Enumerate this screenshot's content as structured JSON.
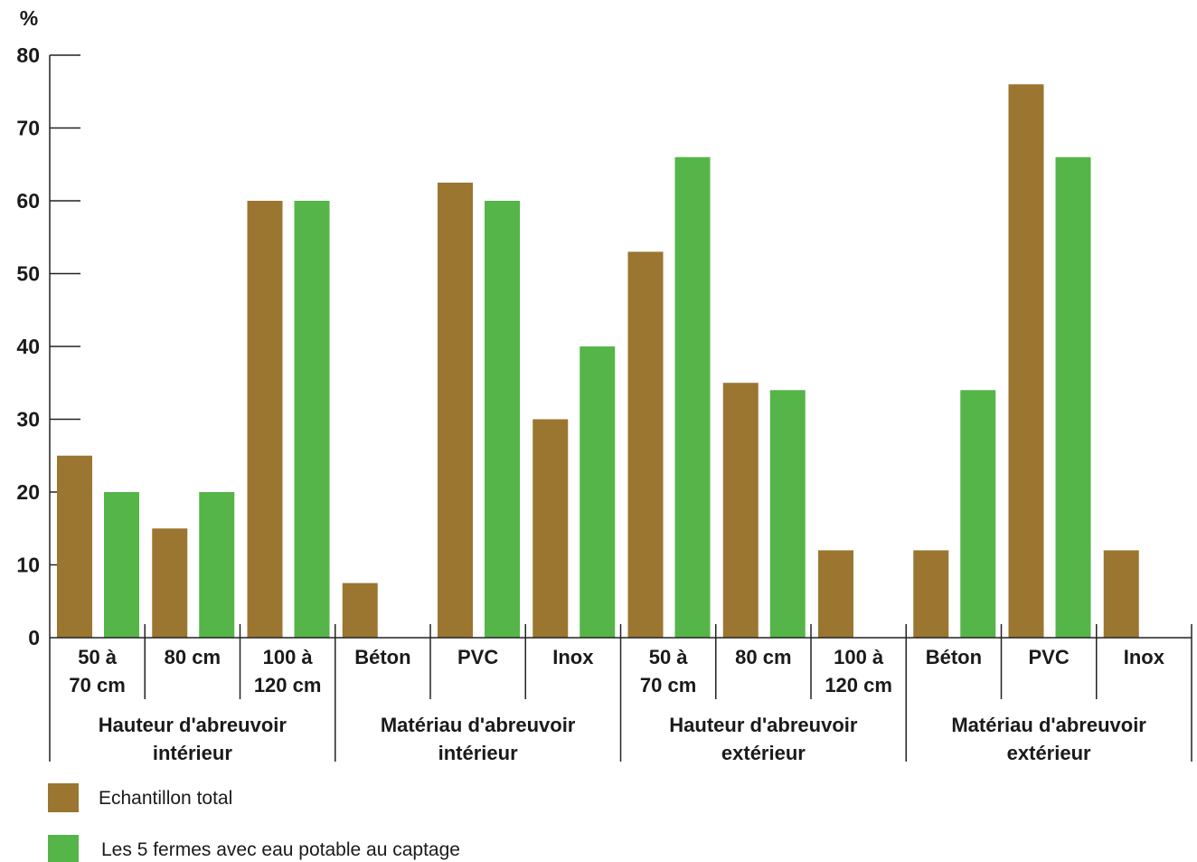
{
  "chart_data": {
    "type": "bar",
    "ylabel": "%",
    "ylim": [
      0,
      80
    ],
    "yticks": [
      "0",
      "10",
      "20",
      "30",
      "40",
      "50",
      "60",
      "70",
      "80"
    ],
    "grid": false,
    "legend_position": "bottom-left",
    "groups": [
      {
        "label": "Hauteur d'abreuvoir intérieur",
        "categories": [
          "50 à 70 cm",
          "80 cm",
          "100 à 120 cm"
        ]
      },
      {
        "label": "Matériau d'abreuvoir intérieur",
        "categories": [
          "Béton",
          "PVC",
          "Inox"
        ]
      },
      {
        "label": "Hauteur d'abreuvoir extérieur",
        "categories": [
          "50 à 70 cm",
          "80 cm",
          "100 à 120 cm"
        ]
      },
      {
        "label": "Matériau d'abreuvoir extérieur",
        "categories": [
          "Béton",
          "PVC",
          "Inox"
        ]
      }
    ],
    "categories": [
      "50 à 70 cm",
      "80 cm",
      "100 à 120 cm",
      "Béton",
      "PVC",
      "Inox",
      "50 à 70 cm",
      "80 cm",
      "100 à 120 cm",
      "Béton",
      "PVC",
      "Inox"
    ],
    "series": [
      {
        "name": "Echantillon total",
        "color": "#9a7630",
        "values": [
          25,
          15,
          60,
          7.5,
          62.5,
          30,
          53,
          35,
          12,
          12,
          76,
          12
        ]
      },
      {
        "name": "Les 5 fermes avec eau potable au captage",
        "color": "#55b548",
        "values": [
          20,
          20,
          60,
          0,
          60,
          40,
          66,
          34,
          0,
          34,
          66,
          0
        ]
      }
    ]
  }
}
